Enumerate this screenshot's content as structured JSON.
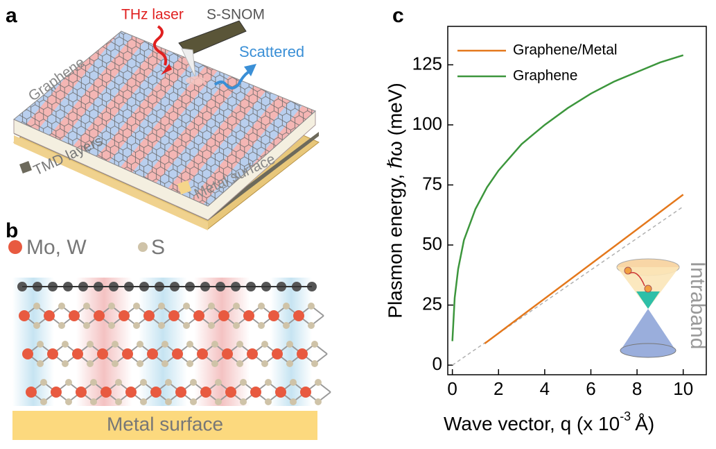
{
  "panel_labels": [
    "a",
    "b",
    "c"
  ],
  "panel_a": {
    "laser": "THz laser",
    "probe": "S-SNOM",
    "scattered": "Scattered",
    "top_layer": "Graphene",
    "middle_layer": "TMD layers",
    "bottom_layer": "Metal surface"
  },
  "panel_b": {
    "legend": [
      "Mo, W",
      "S"
    ],
    "substrate": "Metal surface"
  },
  "chart_data": {
    "type": "line",
    "ylabel": "Plasmon energy, ℏω (meV)",
    "xlabel": {
      "text": "Wave vector, q (x 10",
      "superscript": "-3",
      "unit": "Å)"
    },
    "xlim": [
      -0.2,
      11
    ],
    "ylim": [
      -4,
      141
    ],
    "xticks": [
      0,
      2,
      4,
      6,
      8,
      10
    ],
    "yticks": [
      0,
      25,
      50,
      75,
      100,
      125
    ],
    "legend": "upper left",
    "series": [
      {
        "name": "Graphene/Metal",
        "color": "#e4781c",
        "x": [
          1.4,
          2,
          4,
          6,
          8,
          10
        ],
        "values": [
          9,
          13.3,
          27.7,
          42.1,
          56.5,
          71
        ]
      },
      {
        "name": "Graphene",
        "color": "#3c963c",
        "x": [
          0,
          0.1,
          0.25,
          0.5,
          1,
          1.5,
          2,
          3,
          4,
          5,
          6,
          7,
          8,
          9,
          10
        ],
        "values": [
          10,
          28,
          40,
          52,
          65,
          74,
          81,
          92,
          100,
          107,
          113,
          118,
          122,
          126,
          129
        ]
      }
    ],
    "reference_line": {
      "color": "#b0b0b0",
      "x": [
        0,
        10
      ],
      "values": [
        0,
        66
      ]
    },
    "annotation": "Intraband"
  }
}
